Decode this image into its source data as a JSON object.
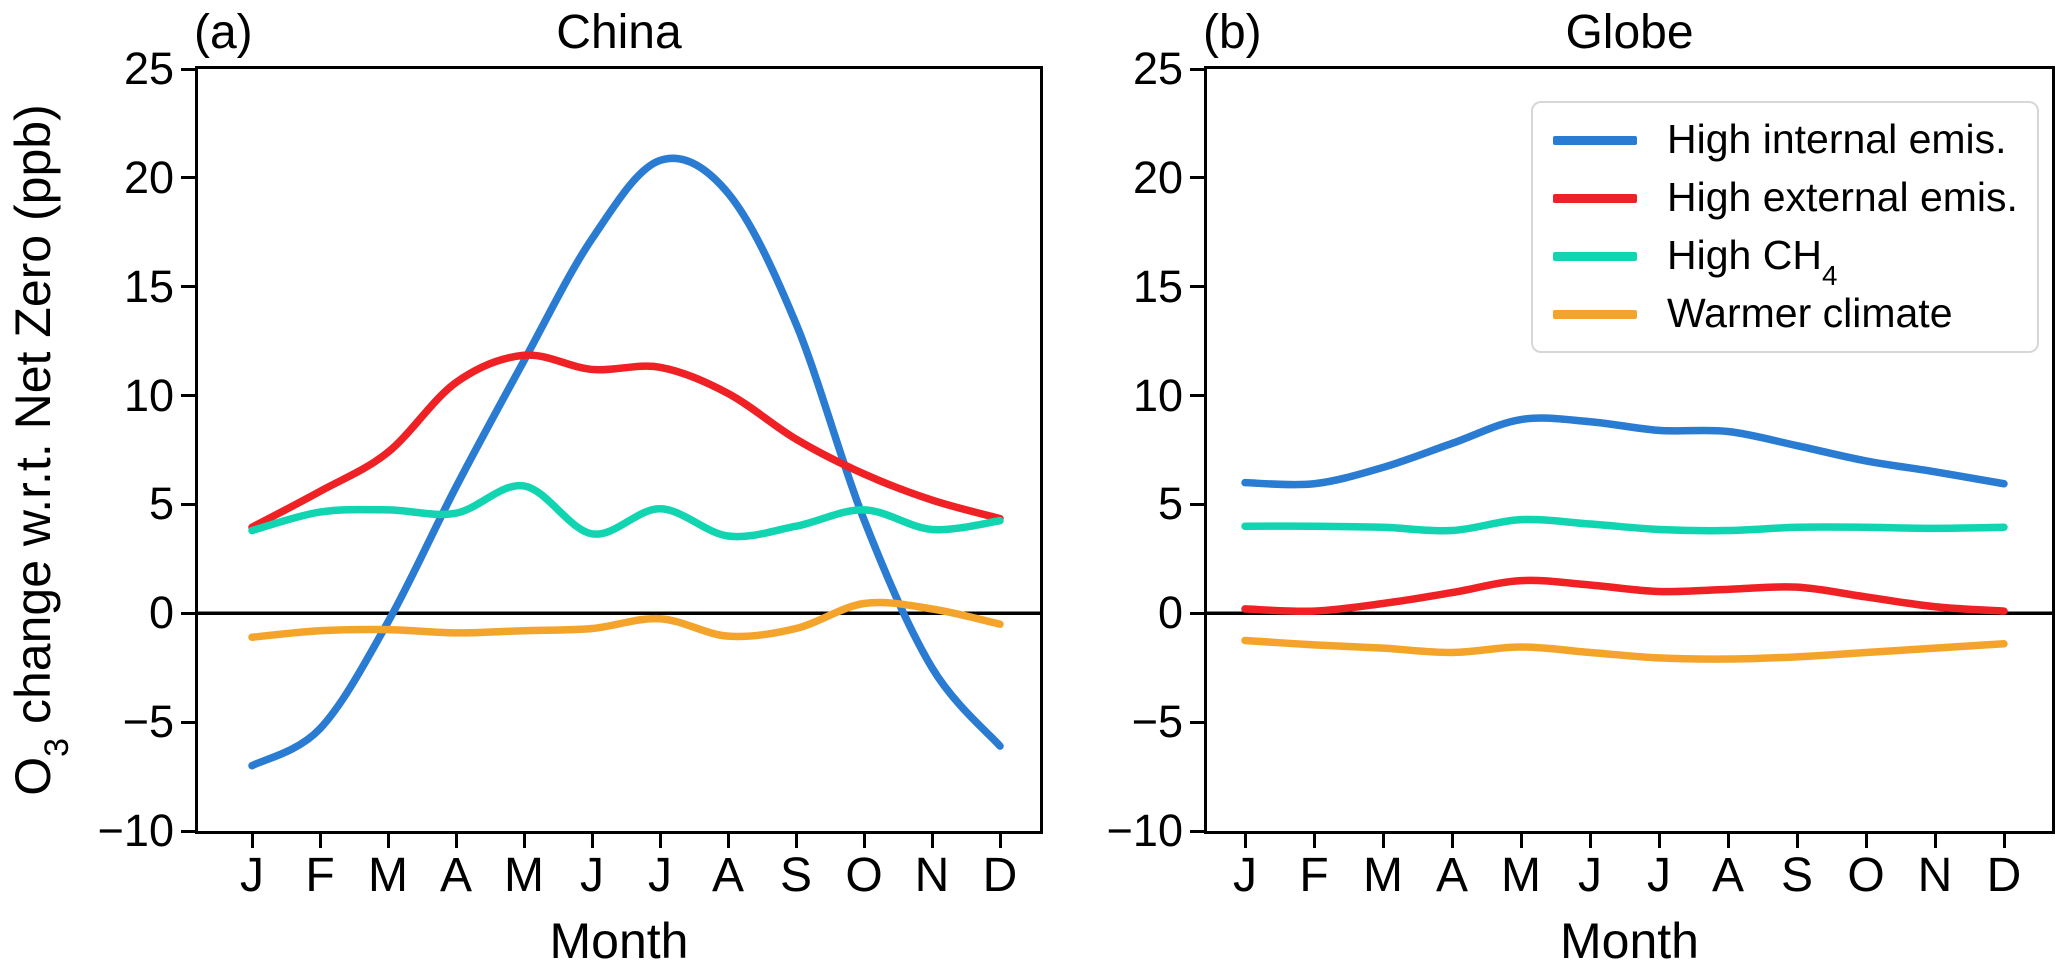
{
  "figure": {
    "shared_ylabel": "O₃ change w.r.t. Net Zero (ppb)"
  },
  "chart_data": [
    {
      "type": "line",
      "panel_label": "(a)",
      "title": "China",
      "xlabel": "Month",
      "ylabel": "O₃ change w.r.t. Net Zero (ppb)",
      "x_tick_labels": [
        "J",
        "F",
        "M",
        "A",
        "M",
        "J",
        "J",
        "A",
        "S",
        "O",
        "N",
        "D"
      ],
      "y_ticks": [
        25,
        20,
        15,
        10,
        5,
        0,
        -5,
        -10
      ],
      "y_tick_labels": [
        "25",
        "20",
        "15",
        "10",
        "5",
        "0",
        "−5",
        "−10"
      ],
      "ylim": [
        -10,
        25
      ],
      "grid": false,
      "zero_line": true,
      "legend_visible": false,
      "series": [
        {
          "name": "High internal emis.",
          "color": "#2A7BD2",
          "values": [
            -7.0,
            -5.3,
            -0.4,
            5.8,
            11.6,
            17.2,
            20.8,
            19.3,
            13.3,
            4.3,
            -2.5,
            -6.1
          ]
        },
        {
          "name": "High external emis.",
          "color": "#EF2125",
          "values": [
            3.95,
            5.6,
            7.4,
            10.6,
            11.85,
            11.2,
            11.3,
            10.1,
            8.0,
            6.4,
            5.2,
            4.35
          ]
        },
        {
          "name": "High CH₄",
          "color": "#11D5B0",
          "values": [
            3.8,
            4.65,
            4.75,
            4.6,
            5.85,
            3.65,
            4.8,
            3.55,
            4.0,
            4.75,
            3.85,
            4.25
          ]
        },
        {
          "name": "Warmer climate",
          "color": "#F5A42B",
          "values": [
            -1.1,
            -0.8,
            -0.75,
            -0.9,
            -0.8,
            -0.7,
            -0.25,
            -1.05,
            -0.7,
            0.45,
            0.2,
            -0.5
          ]
        }
      ]
    },
    {
      "type": "line",
      "panel_label": "(b)",
      "title": "Globe",
      "xlabel": "Month",
      "x_tick_labels": [
        "J",
        "F",
        "M",
        "A",
        "M",
        "J",
        "J",
        "A",
        "S",
        "O",
        "N",
        "D"
      ],
      "y_ticks": [
        25,
        20,
        15,
        10,
        5,
        0,
        -5,
        -10
      ],
      "y_tick_labels": [
        "25",
        "20",
        "15",
        "10",
        "5",
        "0",
        "−5",
        "−10"
      ],
      "ylim": [
        -10,
        25
      ],
      "grid": false,
      "zero_line": true,
      "legend_visible": true,
      "legend_position": "upper right",
      "series": [
        {
          "name": "High internal emis.",
          "color": "#2A7BD2",
          "values": [
            6.0,
            5.95,
            6.7,
            7.8,
            8.9,
            8.8,
            8.4,
            8.35,
            7.7,
            7.0,
            6.5,
            5.95
          ]
        },
        {
          "name": "High external emis.",
          "color": "#EF2125",
          "values": [
            0.2,
            0.1,
            0.45,
            0.95,
            1.5,
            1.3,
            1.0,
            1.1,
            1.2,
            0.75,
            0.3,
            0.1
          ]
        },
        {
          "name": "High CH₄",
          "color": "#11D5B0",
          "values": [
            4.0,
            4.0,
            3.95,
            3.8,
            4.3,
            4.1,
            3.85,
            3.8,
            3.95,
            3.95,
            3.9,
            3.95
          ]
        },
        {
          "name": "Warmer climate",
          "color": "#F5A42B",
          "values": [
            -1.25,
            -1.45,
            -1.6,
            -1.8,
            -1.55,
            -1.8,
            -2.05,
            -2.1,
            -2.0,
            -1.8,
            -1.6,
            -1.4
          ]
        }
      ]
    }
  ]
}
